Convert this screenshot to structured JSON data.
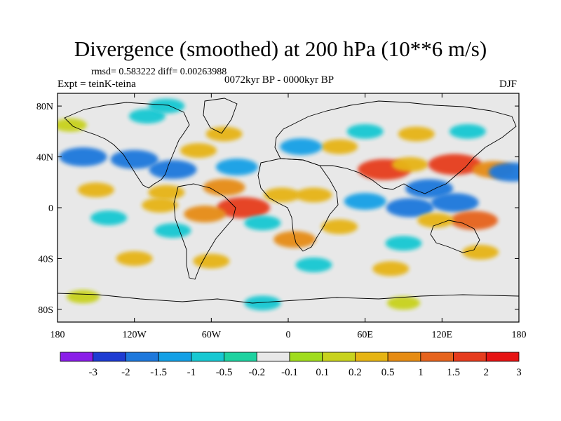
{
  "title": "Divergence (smoothed) at 200 hPa (10**6 m/s)",
  "stats": "rmsd= 0.583222 diff= 0.00263988",
  "period": "0072kyr BP - 0000kyr BP",
  "experiment": "Expt = teinK-teina",
  "season": "DJF",
  "y_ticks": [
    "80N",
    "40N",
    "0",
    "40S",
    "80S"
  ],
  "x_ticks": [
    "180",
    "120W",
    "60W",
    "0",
    "60E",
    "120E",
    "180"
  ],
  "colorbar": {
    "colors": [
      "#8a1ee8",
      "#1e3cd2",
      "#1e78dc",
      "#14a0e6",
      "#18c8d2",
      "#1ed2a0",
      "#e8e8e8",
      "#a0dc1e",
      "#c8d21e",
      "#e6b414",
      "#e68c14",
      "#e6641e",
      "#e63c1e",
      "#e61414"
    ],
    "labels": [
      "-3",
      "-2",
      "-1.5",
      "-1",
      "-0.5",
      "-0.2",
      "-0.1",
      "0.1",
      "0.2",
      "0.5",
      "1",
      "1.5",
      "2",
      "3"
    ]
  },
  "chart_data": {
    "type": "heatmap",
    "title": "Divergence (smoothed) at 200 hPa (10**6 m/s)",
    "x_range": [
      -180,
      180
    ],
    "y_range": [
      -90,
      90
    ],
    "levels": [
      -3,
      -2,
      -1.5,
      -1,
      -0.5,
      -0.2,
      -0.1,
      0.1,
      0.2,
      0.5,
      1,
      1.5,
      2,
      3
    ],
    "features": [
      {
        "lon": -160,
        "lat": 40,
        "value": -1.5
      },
      {
        "lon": -120,
        "lat": 38,
        "value": -1.5
      },
      {
        "lon": -90,
        "lat": 30,
        "value": -1.5
      },
      {
        "lon": -40,
        "lat": 32,
        "value": -1.0
      },
      {
        "lon": -70,
        "lat": 45,
        "value": 0.5
      },
      {
        "lon": -50,
        "lat": 58,
        "value": 0.5
      },
      {
        "lon": -170,
        "lat": 65,
        "value": 0.2
      },
      {
        "lon": -110,
        "lat": 72,
        "value": -0.5
      },
      {
        "lon": -95,
        "lat": 80,
        "value": -0.5
      },
      {
        "lon": -150,
        "lat": 14,
        "value": 0.5
      },
      {
        "lon": -95,
        "lat": 12,
        "value": 0.5
      },
      {
        "lon": -50,
        "lat": 16,
        "value": 1.0
      },
      {
        "lon": -35,
        "lat": 0,
        "value": 2.0
      },
      {
        "lon": -65,
        "lat": -5,
        "value": 1.0
      },
      {
        "lon": -100,
        "lat": 2,
        "value": 0.5
      },
      {
        "lon": -140,
        "lat": -8,
        "value": -0.5
      },
      {
        "lon": -90,
        "lat": -18,
        "value": -0.5
      },
      {
        "lon": -20,
        "lat": -12,
        "value": -0.5
      },
      {
        "lon": -5,
        "lat": 10,
        "value": 0.5
      },
      {
        "lon": 20,
        "lat": 10,
        "value": 0.5
      },
      {
        "lon": 5,
        "lat": -25,
        "value": 1.0
      },
      {
        "lon": 40,
        "lat": -15,
        "value": 0.5
      },
      {
        "lon": 60,
        "lat": 5,
        "value": -1.0
      },
      {
        "lon": 40,
        "lat": 48,
        "value": 0.5
      },
      {
        "lon": 10,
        "lat": 48,
        "value": -1.0
      },
      {
        "lon": 60,
        "lat": 60,
        "value": -0.5
      },
      {
        "lon": 100,
        "lat": 58,
        "value": 0.5
      },
      {
        "lon": 140,
        "lat": 60,
        "value": -0.5
      },
      {
        "lon": 75,
        "lat": 30,
        "value": 2.0
      },
      {
        "lon": 95,
        "lat": 34,
        "value": 0.5
      },
      {
        "lon": 130,
        "lat": 34,
        "value": 2.0
      },
      {
        "lon": 160,
        "lat": 30,
        "value": 1.0
      },
      {
        "lon": 175,
        "lat": 28,
        "value": -1.5
      },
      {
        "lon": 110,
        "lat": 15,
        "value": -1.5
      },
      {
        "lon": 95,
        "lat": 0,
        "value": -1.5
      },
      {
        "lon": 130,
        "lat": 4,
        "value": -1.5
      },
      {
        "lon": 145,
        "lat": -10,
        "value": 1.5
      },
      {
        "lon": 115,
        "lat": -10,
        "value": 0.5
      },
      {
        "lon": 90,
        "lat": -28,
        "value": -0.5
      },
      {
        "lon": -120,
        "lat": -40,
        "value": 0.5
      },
      {
        "lon": -60,
        "lat": -42,
        "value": 0.5
      },
      {
        "lon": 20,
        "lat": -45,
        "value": -0.5
      },
      {
        "lon": 80,
        "lat": -48,
        "value": 0.5
      },
      {
        "lon": 150,
        "lat": -35,
        "value": 0.5
      },
      {
        "lon": -160,
        "lat": -70,
        "value": 0.2
      },
      {
        "lon": -20,
        "lat": -75,
        "value": -0.5
      },
      {
        "lon": 90,
        "lat": -75,
        "value": 0.2
      }
    ]
  }
}
